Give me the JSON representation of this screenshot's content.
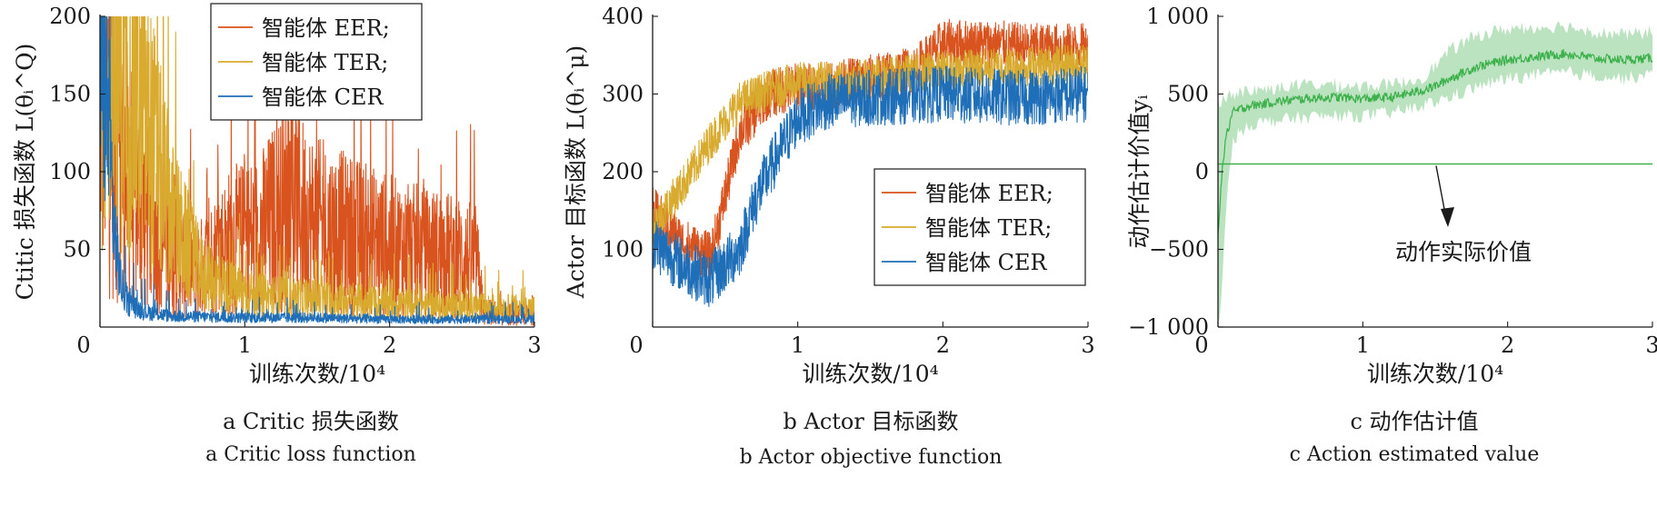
{
  "figure": {
    "panels": [
      {
        "caption_zh": "a  Critic 损失函数",
        "caption_en": "a  Critic loss function"
      },
      {
        "caption_zh": "b  Actor 目标函数",
        "caption_en": "b  Actor objective function"
      },
      {
        "caption_zh": "c  动作估计值",
        "caption_en": "c  Action estimated value"
      }
    ]
  },
  "chart_data": [
    {
      "type": "line",
      "xlabel": "训练次数/10⁴",
      "ylabel": "Ctitic 损失函数 L(θᵢ^Q)",
      "xlim": [
        0,
        3
      ],
      "ylim": [
        0,
        200
      ],
      "xticks": [
        "0",
        "1",
        "2",
        "3"
      ],
      "yticks": [
        "50",
        "100",
        "150",
        "200"
      ],
      "legend_position": "top-center",
      "series": [
        {
          "name": "智能体 EER;",
          "color": "#d9531e",
          "x": [
            0,
            0.1,
            0.3,
            0.5,
            0.7,
            0.9,
            1.1,
            1.3,
            1.5,
            1.7,
            1.9,
            2.1,
            2.3,
            2.5,
            2.6,
            2.65,
            2.8,
            3.0
          ],
          "values": [
            180,
            120,
            75,
            45,
            38,
            55,
            60,
            80,
            65,
            60,
            55,
            50,
            48,
            45,
            42,
            10,
            8,
            8
          ]
        },
        {
          "name": "智能体 TER;",
          "color": "#d8aa2e",
          "x": [
            0,
            0.1,
            0.3,
            0.5,
            0.7,
            0.9,
            1.1,
            1.5,
            2.0,
            2.5,
            3.0
          ],
          "values": [
            175,
            165,
            140,
            70,
            35,
            25,
            20,
            18,
            15,
            13,
            12
          ]
        },
        {
          "name": "智能体 CER",
          "color": "#1f6eb8",
          "x": [
            0,
            0.05,
            0.1,
            0.15,
            0.2,
            0.3,
            0.5,
            1.0,
            1.5,
            2.0,
            2.5,
            3.0
          ],
          "values": [
            180,
            140,
            60,
            25,
            15,
            10,
            7,
            6,
            6,
            5,
            5,
            5
          ]
        }
      ]
    },
    {
      "type": "line",
      "xlabel": "训练次数/10⁴",
      "ylabel": "Actor 目标函数 L(θᵢ^μ)",
      "xlim": [
        0,
        3
      ],
      "ylim": [
        0,
        400
      ],
      "xticks": [
        "0",
        "1",
        "2",
        "3"
      ],
      "yticks": [
        "100",
        "200",
        "300",
        "400"
      ],
      "legend_position": "center-right",
      "series": [
        {
          "name": "智能体 EER;",
          "color": "#d9531e",
          "x": [
            0,
            0.2,
            0.4,
            0.6,
            0.8,
            1.0,
            1.2,
            1.5,
            1.8,
            2.0,
            2.3,
            2.6,
            3.0
          ],
          "values": [
            150,
            110,
            90,
            250,
            300,
            310,
            310,
            320,
            330,
            365,
            365,
            360,
            360
          ]
        },
        {
          "name": "智能体 TER;",
          "color": "#d8aa2e",
          "x": [
            0,
            0.2,
            0.4,
            0.6,
            0.8,
            1.0,
            1.5,
            2.0,
            2.5,
            3.0
          ],
          "values": [
            130,
            180,
            240,
            290,
            305,
            315,
            320,
            330,
            335,
            340
          ]
        },
        {
          "name": "智能体 CER",
          "color": "#1f6eb8",
          "x": [
            0,
            0.2,
            0.4,
            0.6,
            0.7,
            0.8,
            1.0,
            1.2,
            1.5,
            2.0,
            2.5,
            3.0
          ],
          "values": [
            110,
            80,
            60,
            100,
            160,
            200,
            270,
            290,
            295,
            300,
            295,
            300
          ]
        }
      ]
    },
    {
      "type": "area",
      "xlabel": "训练次数/10⁴",
      "ylabel": "动作估计价值yᵢ",
      "xlim": [
        0,
        3
      ],
      "ylim": [
        -1000,
        1000
      ],
      "xticks": [
        "0",
        "1",
        "2",
        "3"
      ],
      "yticks": [
        "−1 000",
        "−500",
        "0",
        "500",
        "1 000"
      ],
      "annotation": "动作实际价值",
      "series": [
        {
          "color": "#3cb04a",
          "x": [
            0,
            0.02,
            0.05,
            0.1,
            0.2,
            0.4,
            0.6,
            0.8,
            1.0,
            1.2,
            1.4,
            1.5,
            1.6,
            1.8,
            2.0,
            2.2,
            2.4,
            2.6,
            2.8,
            3.0
          ],
          "values": [
            -400,
            -100,
            200,
            380,
            420,
            450,
            470,
            480,
            470,
            480,
            520,
            550,
            600,
            680,
            720,
            740,
            760,
            730,
            720,
            730
          ],
          "band_low": [
            -1000,
            -900,
            -300,
            200,
            300,
            330,
            350,
            360,
            360,
            380,
            420,
            450,
            480,
            550,
            600,
            620,
            640,
            620,
            600,
            620
          ],
          "band_high": [
            450,
            460,
            480,
            500,
            520,
            540,
            560,
            560,
            550,
            560,
            600,
            680,
            780,
            880,
            920,
            930,
            940,
            900,
            880,
            900
          ]
        },
        {
          "color": "#3cb04a",
          "x": [
            0,
            3
          ],
          "values": [
            50,
            50
          ]
        }
      ]
    }
  ]
}
